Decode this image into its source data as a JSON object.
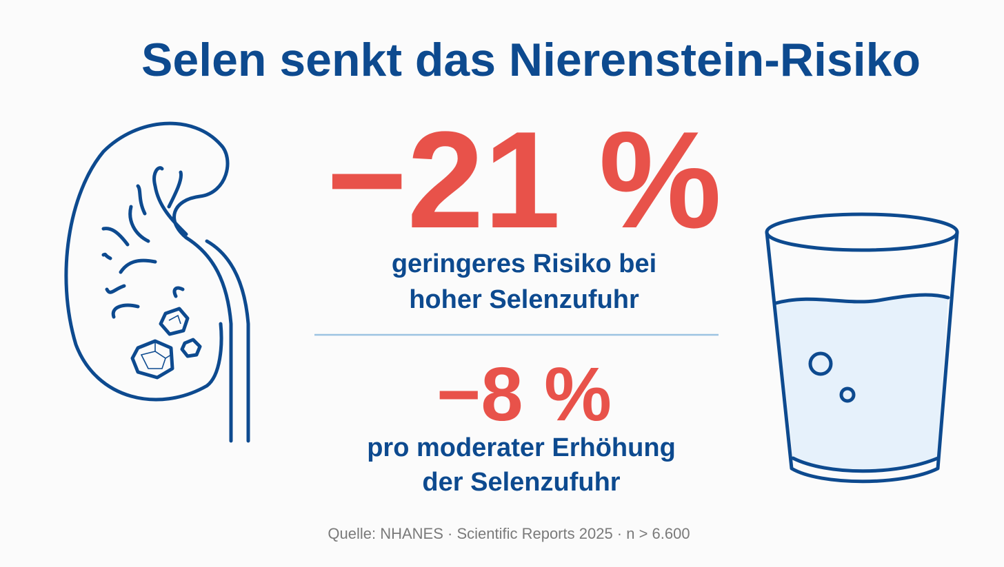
{
  "title": "Selen senkt das Nierenstein-Risiko",
  "stats": [
    {
      "value": "−21 %",
      "lines": [
        "geringeres Risiko bei",
        "hoher Selenzufuhr"
      ]
    },
    {
      "value": "−8 %",
      "lines": [
        "pro moderater Erhöhung",
        "der Selenzufuhr"
      ]
    }
  ],
  "source": "Quelle: NHANES · Scientific Reports 2025 · n > 6.600"
}
